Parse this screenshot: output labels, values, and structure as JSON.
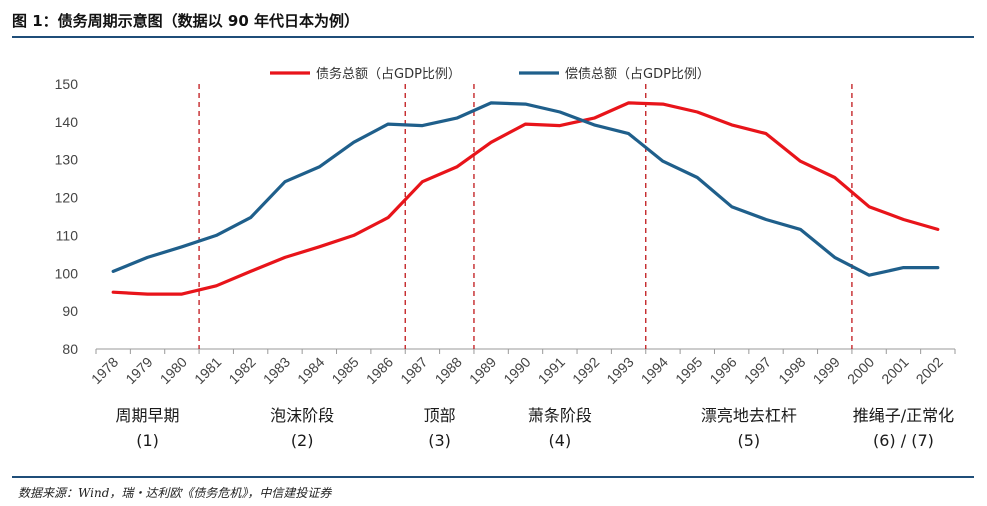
{
  "header": {
    "title": "图 1：债务周期示意图（数据以 90 年代日本为例）"
  },
  "footer": {
    "source": "数据来源：Wind，瑞・达利欧《债务危机》，中信建投证券"
  },
  "colors": {
    "debt": "#e8141a",
    "repay": "#1f5f8b",
    "divider": "#c0161a",
    "rule": "#1f4e79"
  },
  "chart_data": {
    "type": "line",
    "x": [
      "1978",
      "1979",
      "1980",
      "1981",
      "1982",
      "1983",
      "1984",
      "1985",
      "1986",
      "1987",
      "1988",
      "1989",
      "1990",
      "1991",
      "1992",
      "1993",
      "1994",
      "1995",
      "1996",
      "1997",
      "1998",
      "1999",
      "2000",
      "2001",
      "2002"
    ],
    "series": [
      {
        "name": "债务总额（占GDP比例）",
        "color": "#e8141a",
        "values": [
          95,
          94.5,
          94.5,
          96.7,
          100.5,
          104.2,
          107,
          110,
          114.7,
          124.2,
          128.1,
          134.6,
          139.4,
          139,
          141,
          145,
          144.7,
          142.6,
          139.2,
          136.9,
          129.6,
          125.3,
          117.6,
          114.2,
          111.6
        ]
      },
      {
        "name": "偿债总额（占GDP比例）",
        "color": "#1f5f8b",
        "values": [
          100.5,
          104.2,
          107,
          110,
          114.7,
          124.2,
          128.1,
          134.6,
          139.4,
          139,
          141,
          145,
          144.7,
          142.6,
          139.2,
          136.9,
          129.6,
          125.3,
          117.6,
          114.2,
          111.6,
          104.2,
          99.5,
          101.5,
          101.5
        ]
      }
    ],
    "ylim": [
      80,
      150
    ],
    "yticks": [
      "80",
      "90",
      "100",
      "110",
      "120",
      "130",
      "140",
      "150"
    ],
    "dividers_after_year": [
      "1980",
      "1986",
      "1988",
      "1993",
      "1999"
    ],
    "phases": [
      {
        "label": "周期早期",
        "num": "(1)"
      },
      {
        "label": "泡沫阶段",
        "num": "(2)"
      },
      {
        "label": "顶部",
        "num": "(3)"
      },
      {
        "label": "萧条阶段",
        "num": "(4)"
      },
      {
        "label": "漂亮地去杠杆",
        "num": "(5)"
      },
      {
        "label": "推绳子/正常化",
        "num": "(6)  /  (7)"
      }
    ],
    "legend_position": "top-center",
    "grid": false
  }
}
